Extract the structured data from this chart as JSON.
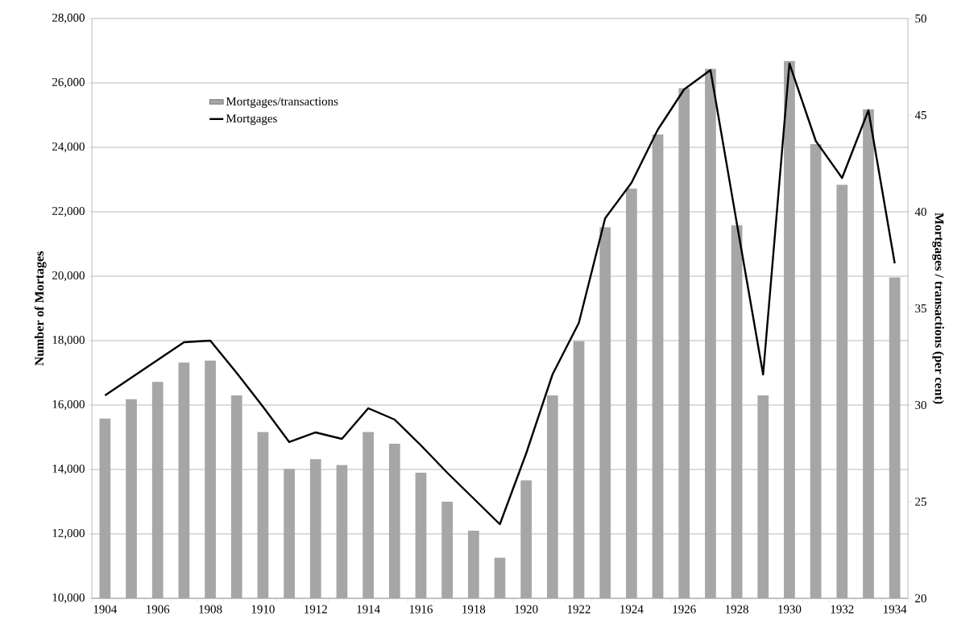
{
  "chart_data": {
    "type": "bar",
    "categories": [
      "1904",
      null,
      "1906",
      null,
      "1908",
      null,
      "1910",
      null,
      "1912",
      null,
      "1914",
      null,
      "1916",
      null,
      "1918",
      null,
      "1920",
      null,
      "1922",
      null,
      "1924",
      null,
      "1926",
      null,
      "1928",
      null,
      "1930",
      null,
      "1932",
      null,
      "1934"
    ],
    "series": [
      {
        "name": "Mortgages/transactions",
        "color": "#a6a6a6",
        "axis": "y2",
        "values": [
          29.3,
          30.3,
          31.2,
          32.2,
          32.3,
          30.5,
          28.6,
          26.7,
          27.2,
          26.9,
          28.6,
          28.0,
          26.5,
          25.0,
          23.5,
          22.1,
          26.1,
          30.5,
          33.3,
          39.2,
          41.2,
          44.0,
          46.4,
          47.4,
          39.3,
          30.5,
          47.8,
          43.5,
          41.4,
          45.3,
          36.6
        ]
      },
      {
        "name": "Mortgages",
        "type": "line",
        "color": "#000000",
        "values": [
          16300,
          16850,
          17400,
          17950,
          18000,
          17000,
          15950,
          14850,
          15150,
          14950,
          15900,
          15550,
          14750,
          13900,
          13100,
          12300,
          14500,
          16950,
          18550,
          21800,
          22900,
          24550,
          25800,
          26400,
          21650,
          16950,
          26600,
          24200,
          23050,
          25150,
          20400
        ]
      }
    ],
    "ylabel": "Number of Mortages",
    "y2label": "Mortgages / transactions (per cent)",
    "ylim": [
      10000,
      28000
    ],
    "yticks": [
      {
        "value": 10000,
        "label": "10,000"
      },
      {
        "value": 12000,
        "label": "12,000"
      },
      {
        "value": 14000,
        "label": "14,000"
      },
      {
        "value": 16000,
        "label": "16,000"
      },
      {
        "value": 18000,
        "label": "18,000"
      },
      {
        "value": 20000,
        "label": "20,000"
      },
      {
        "value": 22000,
        "label": "22,000"
      },
      {
        "value": 24000,
        "label": "24,000"
      },
      {
        "value": 26000,
        "label": "26,000"
      },
      {
        "value": 28000,
        "label": "28,000"
      }
    ],
    "y2lim": [
      20,
      50
    ],
    "y2ticks": [
      20,
      25,
      30,
      35,
      40,
      45,
      50
    ],
    "grid": "y",
    "legend": "top left"
  }
}
